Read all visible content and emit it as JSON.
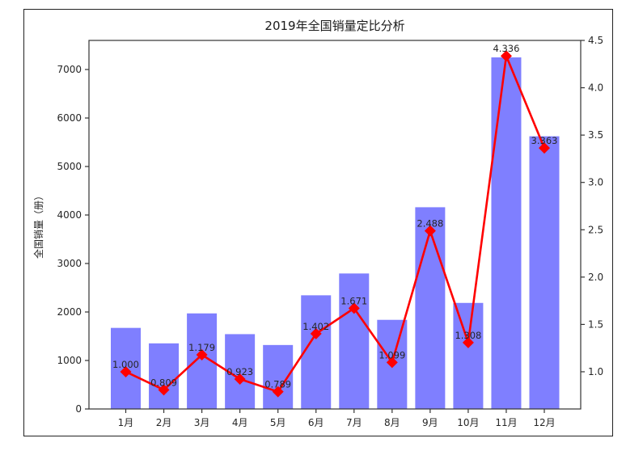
{
  "chart_data": {
    "type": "bar+line",
    "title": "2019年全国销量定比分析",
    "xlabel": "",
    "ylabel": "全国销量（册）",
    "y2label": "",
    "categories": [
      "1月",
      "2月",
      "3月",
      "4月",
      "5月",
      "6月",
      "7月",
      "8月",
      "9月",
      "10月",
      "11月",
      "12月"
    ],
    "series": [
      {
        "name": "全国销量",
        "type": "bar",
        "axis": "left",
        "color": "#7f7fff",
        "values": [
          1672,
          1353,
          1971,
          1543,
          1319,
          2344,
          2794,
          1838,
          4160,
          2187,
          7250,
          5623
        ]
      },
      {
        "name": "定比",
        "type": "line",
        "axis": "right",
        "color": "#ff0000",
        "marker": "diamond",
        "values": [
          1.0,
          0.809,
          1.179,
          0.923,
          0.789,
          1.402,
          1.671,
          1.099,
          2.488,
          1.308,
          4.336,
          3.363
        ],
        "labels": [
          "1.000",
          "0.809",
          "1.179",
          "0.923",
          "0.789",
          "1.402",
          "1.671",
          "1.099",
          "2.488",
          "1.308",
          "4.336",
          "3.363"
        ]
      }
    ],
    "ylim": [
      0,
      7600
    ],
    "yticks": [
      0,
      1000,
      2000,
      3000,
      4000,
      5000,
      6000,
      7000
    ],
    "y2lim": [
      0.607,
      4.5
    ],
    "y2ticks": [
      "1.0",
      "1.5",
      "2.0",
      "2.5",
      "3.0",
      "3.5",
      "4.0",
      "4.5"
    ],
    "grid": false,
    "legend": null
  }
}
